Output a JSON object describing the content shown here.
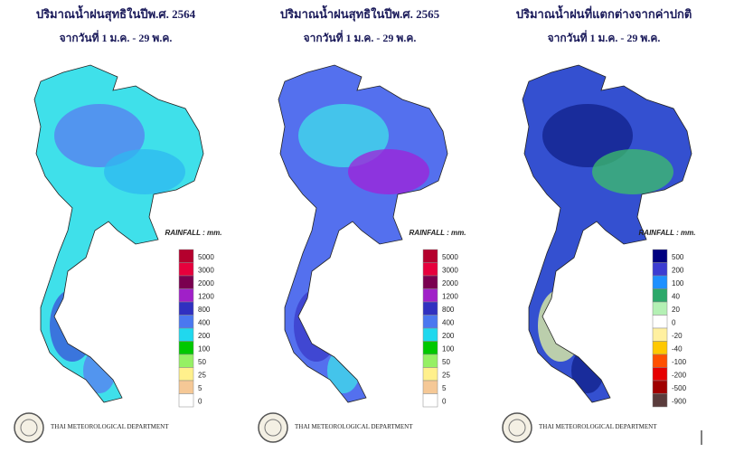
{
  "maps": [
    {
      "title": "ปริมาณน้ำฝนสุทธิในปีพ.ศ. 2564",
      "subtitle": "จากวันที่ 1 ม.ค. - 29 พ.ค.",
      "legend_title": "RAINFALL : mm.",
      "footer": "THAI METEOROLOGICAL DEPARTMENT",
      "base_color": "#3fe0ea",
      "accent_colors": [
        "#5a7cf0",
        "#2fb8f0",
        "#3a52d8"
      ],
      "legend": [
        {
          "label": "5000",
          "color": "#b4002d"
        },
        {
          "label": "3000",
          "color": "#e6003c"
        },
        {
          "label": "2000",
          "color": "#7a0050"
        },
        {
          "label": "1200",
          "color": "#a020c8"
        },
        {
          "label": "800",
          "color": "#3030c0"
        },
        {
          "label": "400",
          "color": "#4a78f0"
        },
        {
          "label": "200",
          "color": "#20d8ee"
        },
        {
          "label": "100",
          "color": "#00c800"
        },
        {
          "label": "50",
          "color": "#96f064"
        },
        {
          "label": "25",
          "color": "#fff08c"
        },
        {
          "label": "5",
          "color": "#f5c896"
        },
        {
          "label": "0",
          "color": "#ffffff"
        }
      ]
    },
    {
      "title": "ปริมาณน้ำฝนสุทธิในปีพ.ศ. 2565",
      "subtitle": "จากวันที่ 1 ม.ค. - 29 พ.ค.",
      "legend_title": "RAINFALL : mm.",
      "footer": "THAI METEOROLOGICAL DEPARTMENT",
      "base_color": "#5470ee",
      "accent_colors": [
        "#3fe0ea",
        "#a020d8",
        "#3a3ac8"
      ],
      "legend": [
        {
          "label": "5000",
          "color": "#b4002d"
        },
        {
          "label": "3000",
          "color": "#e6003c"
        },
        {
          "label": "2000",
          "color": "#7a0050"
        },
        {
          "label": "1200",
          "color": "#a020c8"
        },
        {
          "label": "800",
          "color": "#3030c0"
        },
        {
          "label": "400",
          "color": "#4a78f0"
        },
        {
          "label": "200",
          "color": "#20d8ee"
        },
        {
          "label": "100",
          "color": "#00c800"
        },
        {
          "label": "50",
          "color": "#96f064"
        },
        {
          "label": "25",
          "color": "#fff08c"
        },
        {
          "label": "5",
          "color": "#f5c896"
        },
        {
          "label": "0",
          "color": "#ffffff"
        }
      ]
    },
    {
      "title": "ปริมาณน้ำฝนที่แตกต่างจากค่าปกติ",
      "subtitle": "จากวันที่ 1 ม.ค. - 29 พ.ค.",
      "legend_title": "RAINFALL : mm.",
      "footer": "THAI METEOROLOGICAL DEPARTMENT",
      "base_color": "#3450d0",
      "accent_colors": [
        "#10208a",
        "#3cc06a",
        "#e8f8a0"
      ],
      "legend": [
        {
          "label": "500",
          "color": "#000080"
        },
        {
          "label": "200",
          "color": "#3c3cd2"
        },
        {
          "label": "100",
          "color": "#1e90ff"
        },
        {
          "label": "40",
          "color": "#2ca86a"
        },
        {
          "label": "20",
          "color": "#b4f0b4"
        },
        {
          "label": "0",
          "color": "#ffffff"
        },
        {
          "label": "-20",
          "color": "#fff0a0"
        },
        {
          "label": "-40",
          "color": "#ffc800"
        },
        {
          "label": "-100",
          "color": "#ff5000"
        },
        {
          "label": "-200",
          "color": "#e60000"
        },
        {
          "label": "-500",
          "color": "#a00000"
        },
        {
          "label": "-900",
          "color": "#5a3c3c"
        }
      ]
    }
  ]
}
